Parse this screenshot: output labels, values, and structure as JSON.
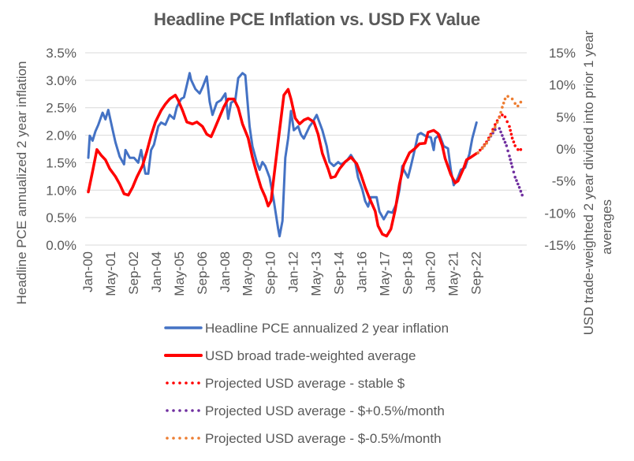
{
  "chart_data": {
    "type": "line",
    "title": "Headline PCE Inflation vs. USD FX Value",
    "xlabel": "",
    "ylabel": "Headline PCE annualized 2 year inflation",
    "y2label_line1": "USD trade-weighted 2 year divided into prior 1 year",
    "y2label_line2": "averages",
    "x_start": "Jan-00",
    "x_unit": "months since Jan-00",
    "xlim": [
      0,
      307
    ],
    "x_ticks": [
      {
        "m": 0,
        "label": "Jan-00"
      },
      {
        "m": 16,
        "label": "May-01"
      },
      {
        "m": 32,
        "label": "Sep-02"
      },
      {
        "m": 48,
        "label": "Jan-04"
      },
      {
        "m": 64,
        "label": "May-05"
      },
      {
        "m": 80,
        "label": "Sep-06"
      },
      {
        "m": 96,
        "label": "Jan-08"
      },
      {
        "m": 112,
        "label": "May-09"
      },
      {
        "m": 128,
        "label": "Sep-10"
      },
      {
        "m": 144,
        "label": "Jan-12"
      },
      {
        "m": 160,
        "label": "May-13"
      },
      {
        "m": 176,
        "label": "Sep-14"
      },
      {
        "m": 192,
        "label": "Jan-16"
      },
      {
        "m": 208,
        "label": "May-17"
      },
      {
        "m": 224,
        "label": "Sep-18"
      },
      {
        "m": 240,
        "label": "Jan-20"
      },
      {
        "m": 256,
        "label": "May-21"
      },
      {
        "m": 272,
        "label": "Sep-22"
      }
    ],
    "ylim": [
      0,
      3.5
    ],
    "y_ticks": [
      "0.0%",
      "0.5%",
      "1.0%",
      "1.5%",
      "2.0%",
      "2.5%",
      "3.0%",
      "3.5%"
    ],
    "y_tick_values": [
      0,
      0.5,
      1.0,
      1.5,
      2.0,
      2.5,
      3.0,
      3.5
    ],
    "y2lim": [
      -15,
      15
    ],
    "y2_ticks": [
      "-15%",
      "-10%",
      "-5%",
      "0%",
      "5%",
      "10%",
      "15%"
    ],
    "y2_tick_values": [
      -15,
      -10,
      -5,
      0,
      5,
      10,
      15
    ],
    "grid": true,
    "legend_position": "bottom",
    "series": [
      {
        "name": "Headline PCE annualized 2 year inflation",
        "axis": "left",
        "style": "solid",
        "color": "#4472C4",
        "points": [
          [
            0,
            1.59
          ],
          [
            1,
            1.99
          ],
          [
            3,
            1.9
          ],
          [
            5,
            2.07
          ],
          [
            7,
            2.19
          ],
          [
            10,
            2.41
          ],
          [
            12,
            2.29
          ],
          [
            14,
            2.46
          ],
          [
            17,
            2.1
          ],
          [
            19,
            1.87
          ],
          [
            22,
            1.61
          ],
          [
            25,
            1.47
          ],
          [
            26,
            1.73
          ],
          [
            29,
            1.59
          ],
          [
            32,
            1.59
          ],
          [
            35,
            1.5
          ],
          [
            37,
            1.73
          ],
          [
            40,
            1.3
          ],
          [
            42,
            1.3
          ],
          [
            44,
            1.73
          ],
          [
            46,
            1.83
          ],
          [
            49,
            2.16
          ],
          [
            51,
            2.23
          ],
          [
            54,
            2.19
          ],
          [
            57,
            2.37
          ],
          [
            60,
            2.3
          ],
          [
            62,
            2.51
          ],
          [
            65,
            2.66
          ],
          [
            67,
            2.69
          ],
          [
            71,
            3.13
          ],
          [
            72,
            3.01
          ],
          [
            75,
            2.84
          ],
          [
            78,
            2.76
          ],
          [
            80,
            2.87
          ],
          [
            83,
            3.07
          ],
          [
            85,
            2.61
          ],
          [
            87,
            2.37
          ],
          [
            90,
            2.59
          ],
          [
            93,
            2.64
          ],
          [
            96,
            2.76
          ],
          [
            98,
            2.3
          ],
          [
            100,
            2.59
          ],
          [
            103,
            2.64
          ],
          [
            105,
            3.04
          ],
          [
            108,
            3.13
          ],
          [
            110,
            3.09
          ],
          [
            113,
            2.16
          ],
          [
            115,
            1.8
          ],
          [
            118,
            1.51
          ],
          [
            120,
            1.37
          ],
          [
            122,
            1.51
          ],
          [
            124,
            1.44
          ],
          [
            127,
            1.23
          ],
          [
            130,
            0.8
          ],
          [
            133,
            0.3
          ],
          [
            134,
            0.16
          ],
          [
            136,
            0.44
          ],
          [
            138,
            1.59
          ],
          [
            140,
            1.94
          ],
          [
            142,
            2.44
          ],
          [
            144,
            2.09
          ],
          [
            147,
            2.16
          ],
          [
            149,
            2.01
          ],
          [
            151,
            1.94
          ],
          [
            155,
            2.16
          ],
          [
            157,
            2.23
          ],
          [
            160,
            2.37
          ],
          [
            162,
            2.23
          ],
          [
            164,
            2.09
          ],
          [
            167,
            1.8
          ],
          [
            169,
            1.51
          ],
          [
            172,
            1.44
          ],
          [
            175,
            1.51
          ],
          [
            177,
            1.47
          ],
          [
            181,
            1.53
          ],
          [
            184,
            1.64
          ],
          [
            187,
            1.51
          ],
          [
            189,
            1.23
          ],
          [
            192,
            1.01
          ],
          [
            194,
            0.8
          ],
          [
            196,
            0.7
          ],
          [
            198,
            0.87
          ],
          [
            202,
            0.87
          ],
          [
            204,
            0.61
          ],
          [
            207,
            0.47
          ],
          [
            210,
            0.61
          ],
          [
            213,
            0.59
          ],
          [
            216,
            0.76
          ],
          [
            218,
            1.01
          ],
          [
            220,
            1.44
          ],
          [
            221,
            1.37
          ],
          [
            224,
            1.23
          ],
          [
            226,
            1.44
          ],
          [
            228,
            1.66
          ],
          [
            231,
            2.01
          ],
          [
            233,
            2.04
          ],
          [
            236,
            1.99
          ],
          [
            240,
            1.96
          ],
          [
            242,
            1.73
          ],
          [
            243,
            1.94
          ],
          [
            246,
            2.01
          ],
          [
            249,
            1.8
          ],
          [
            252,
            1.76
          ],
          [
            254,
            1.37
          ],
          [
            256,
            1.09
          ],
          [
            259,
            1.23
          ],
          [
            261,
            1.37
          ],
          [
            264,
            1.41
          ],
          [
            267,
            1.66
          ],
          [
            269,
            1.94
          ],
          [
            272,
            2.23
          ]
        ]
      },
      {
        "name": "USD broad trade-weighted average",
        "axis": "right",
        "style": "solid",
        "color": "#FF0000",
        "points": [
          [
            0,
            -6.7
          ],
          [
            3,
            -3.5
          ],
          [
            6,
            -0.1
          ],
          [
            9,
            -1.0
          ],
          [
            12,
            -1.7
          ],
          [
            15,
            -3.1
          ],
          [
            19,
            -4.3
          ],
          [
            22,
            -5.5
          ],
          [
            25,
            -7.0
          ],
          [
            28,
            -7.2
          ],
          [
            31,
            -6.0
          ],
          [
            34,
            -4.4
          ],
          [
            38,
            -2.6
          ],
          [
            41,
            -0.4
          ],
          [
            44,
            2.1
          ],
          [
            47,
            4.2
          ],
          [
            51,
            6.0
          ],
          [
            54,
            7.0
          ],
          [
            57,
            7.8
          ],
          [
            61,
            8.4
          ],
          [
            63,
            7.6
          ],
          [
            66,
            6.0
          ],
          [
            69,
            4.2
          ],
          [
            73,
            3.9
          ],
          [
            76,
            4.2
          ],
          [
            80,
            3.5
          ],
          [
            83,
            2.3
          ],
          [
            86,
            1.9
          ],
          [
            88,
            2.9
          ],
          [
            92,
            5.0
          ],
          [
            95,
            6.6
          ],
          [
            98,
            7.8
          ],
          [
            102,
            7.8
          ],
          [
            105,
            6.4
          ],
          [
            108,
            3.9
          ],
          [
            112,
            1.7
          ],
          [
            115,
            -1.3
          ],
          [
            118,
            -3.8
          ],
          [
            121,
            -6.0
          ],
          [
            124,
            -7.5
          ],
          [
            126,
            -8.9
          ],
          [
            128,
            -8.1
          ],
          [
            130,
            -4.4
          ],
          [
            133,
            1.1
          ],
          [
            135,
            4.8
          ],
          [
            137,
            8.4
          ],
          [
            140,
            9.3
          ],
          [
            142,
            7.8
          ],
          [
            145,
            4.8
          ],
          [
            148,
            3.9
          ],
          [
            151,
            4.5
          ],
          [
            154,
            4.8
          ],
          [
            158,
            4.2
          ],
          [
            161,
            2.3
          ],
          [
            164,
            -0.7
          ],
          [
            168,
            -3.1
          ],
          [
            170,
            -4.5
          ],
          [
            173,
            -4.3
          ],
          [
            176,
            -3.1
          ],
          [
            180,
            -2.0
          ],
          [
            184,
            -1.3
          ],
          [
            188,
            -2.3
          ],
          [
            191,
            -4.0
          ],
          [
            194,
            -6.0
          ],
          [
            197,
            -7.7
          ],
          [
            201,
            -9.7
          ],
          [
            203,
            -12.0
          ],
          [
            206,
            -13.3
          ],
          [
            209,
            -13.6
          ],
          [
            212,
            -12.5
          ],
          [
            215,
            -9.5
          ],
          [
            218,
            -5.5
          ],
          [
            221,
            -2.5
          ],
          [
            225,
            -0.6
          ],
          [
            229,
            0.1
          ],
          [
            232,
            0.8
          ],
          [
            236,
            0.9
          ],
          [
            238,
            2.6
          ],
          [
            242,
            2.9
          ],
          [
            245,
            2.4
          ],
          [
            248,
            0.5
          ],
          [
            250,
            -1.5
          ],
          [
            254,
            -4.0
          ],
          [
            257,
            -5.3
          ],
          [
            259,
            -5.0
          ],
          [
            263,
            -3.0
          ],
          [
            265,
            -1.7
          ],
          [
            268,
            -1.3
          ],
          [
            272,
            -0.7
          ]
        ]
      },
      {
        "name": "Projected USD average - stable $",
        "axis": "right",
        "style": "dotted",
        "color": "#FF0000",
        "points": [
          [
            273,
            -0.6
          ],
          [
            276,
            0.2
          ],
          [
            279,
            1.1
          ],
          [
            282,
            2.3
          ],
          [
            285,
            3.8
          ],
          [
            288,
            5.0
          ],
          [
            290,
            5.3
          ],
          [
            292,
            5.0
          ],
          [
            295,
            3.5
          ],
          [
            297,
            1.7
          ],
          [
            299,
            0.5
          ],
          [
            301,
            -0.1
          ],
          [
            303,
            -0.1
          ],
          [
            305,
            0.0
          ]
        ]
      },
      {
        "name": "Projected USD average - $+0.5%/month",
        "axis": "right",
        "style": "dotted",
        "color": "#7030A0",
        "points": [
          [
            273,
            -0.6
          ],
          [
            276,
            0.1
          ],
          [
            279,
            0.9
          ],
          [
            282,
            2.0
          ],
          [
            285,
            3.0
          ],
          [
            288,
            3.2
          ],
          [
            290,
            2.1
          ],
          [
            293,
            0.5
          ],
          [
            295,
            -1.1
          ],
          [
            297,
            -2.8
          ],
          [
            299,
            -4.4
          ],
          [
            302,
            -6.0
          ],
          [
            304,
            -7.2
          ],
          [
            306,
            -7.7
          ]
        ]
      },
      {
        "name": "Projected USD average - $-0.5%/month",
        "axis": "right",
        "style": "dotted",
        "color": "#ED7D31",
        "points": [
          [
            273,
            -0.6
          ],
          [
            276,
            0.1
          ],
          [
            279,
            0.9
          ],
          [
            282,
            2.1
          ],
          [
            285,
            3.4
          ],
          [
            288,
            4.9
          ],
          [
            290,
            6.5
          ],
          [
            292,
            7.8
          ],
          [
            294,
            8.2
          ],
          [
            297,
            7.8
          ],
          [
            299,
            7.1
          ],
          [
            301,
            6.7
          ],
          [
            303,
            7.3
          ],
          [
            305,
            8.0
          ]
        ]
      }
    ]
  }
}
